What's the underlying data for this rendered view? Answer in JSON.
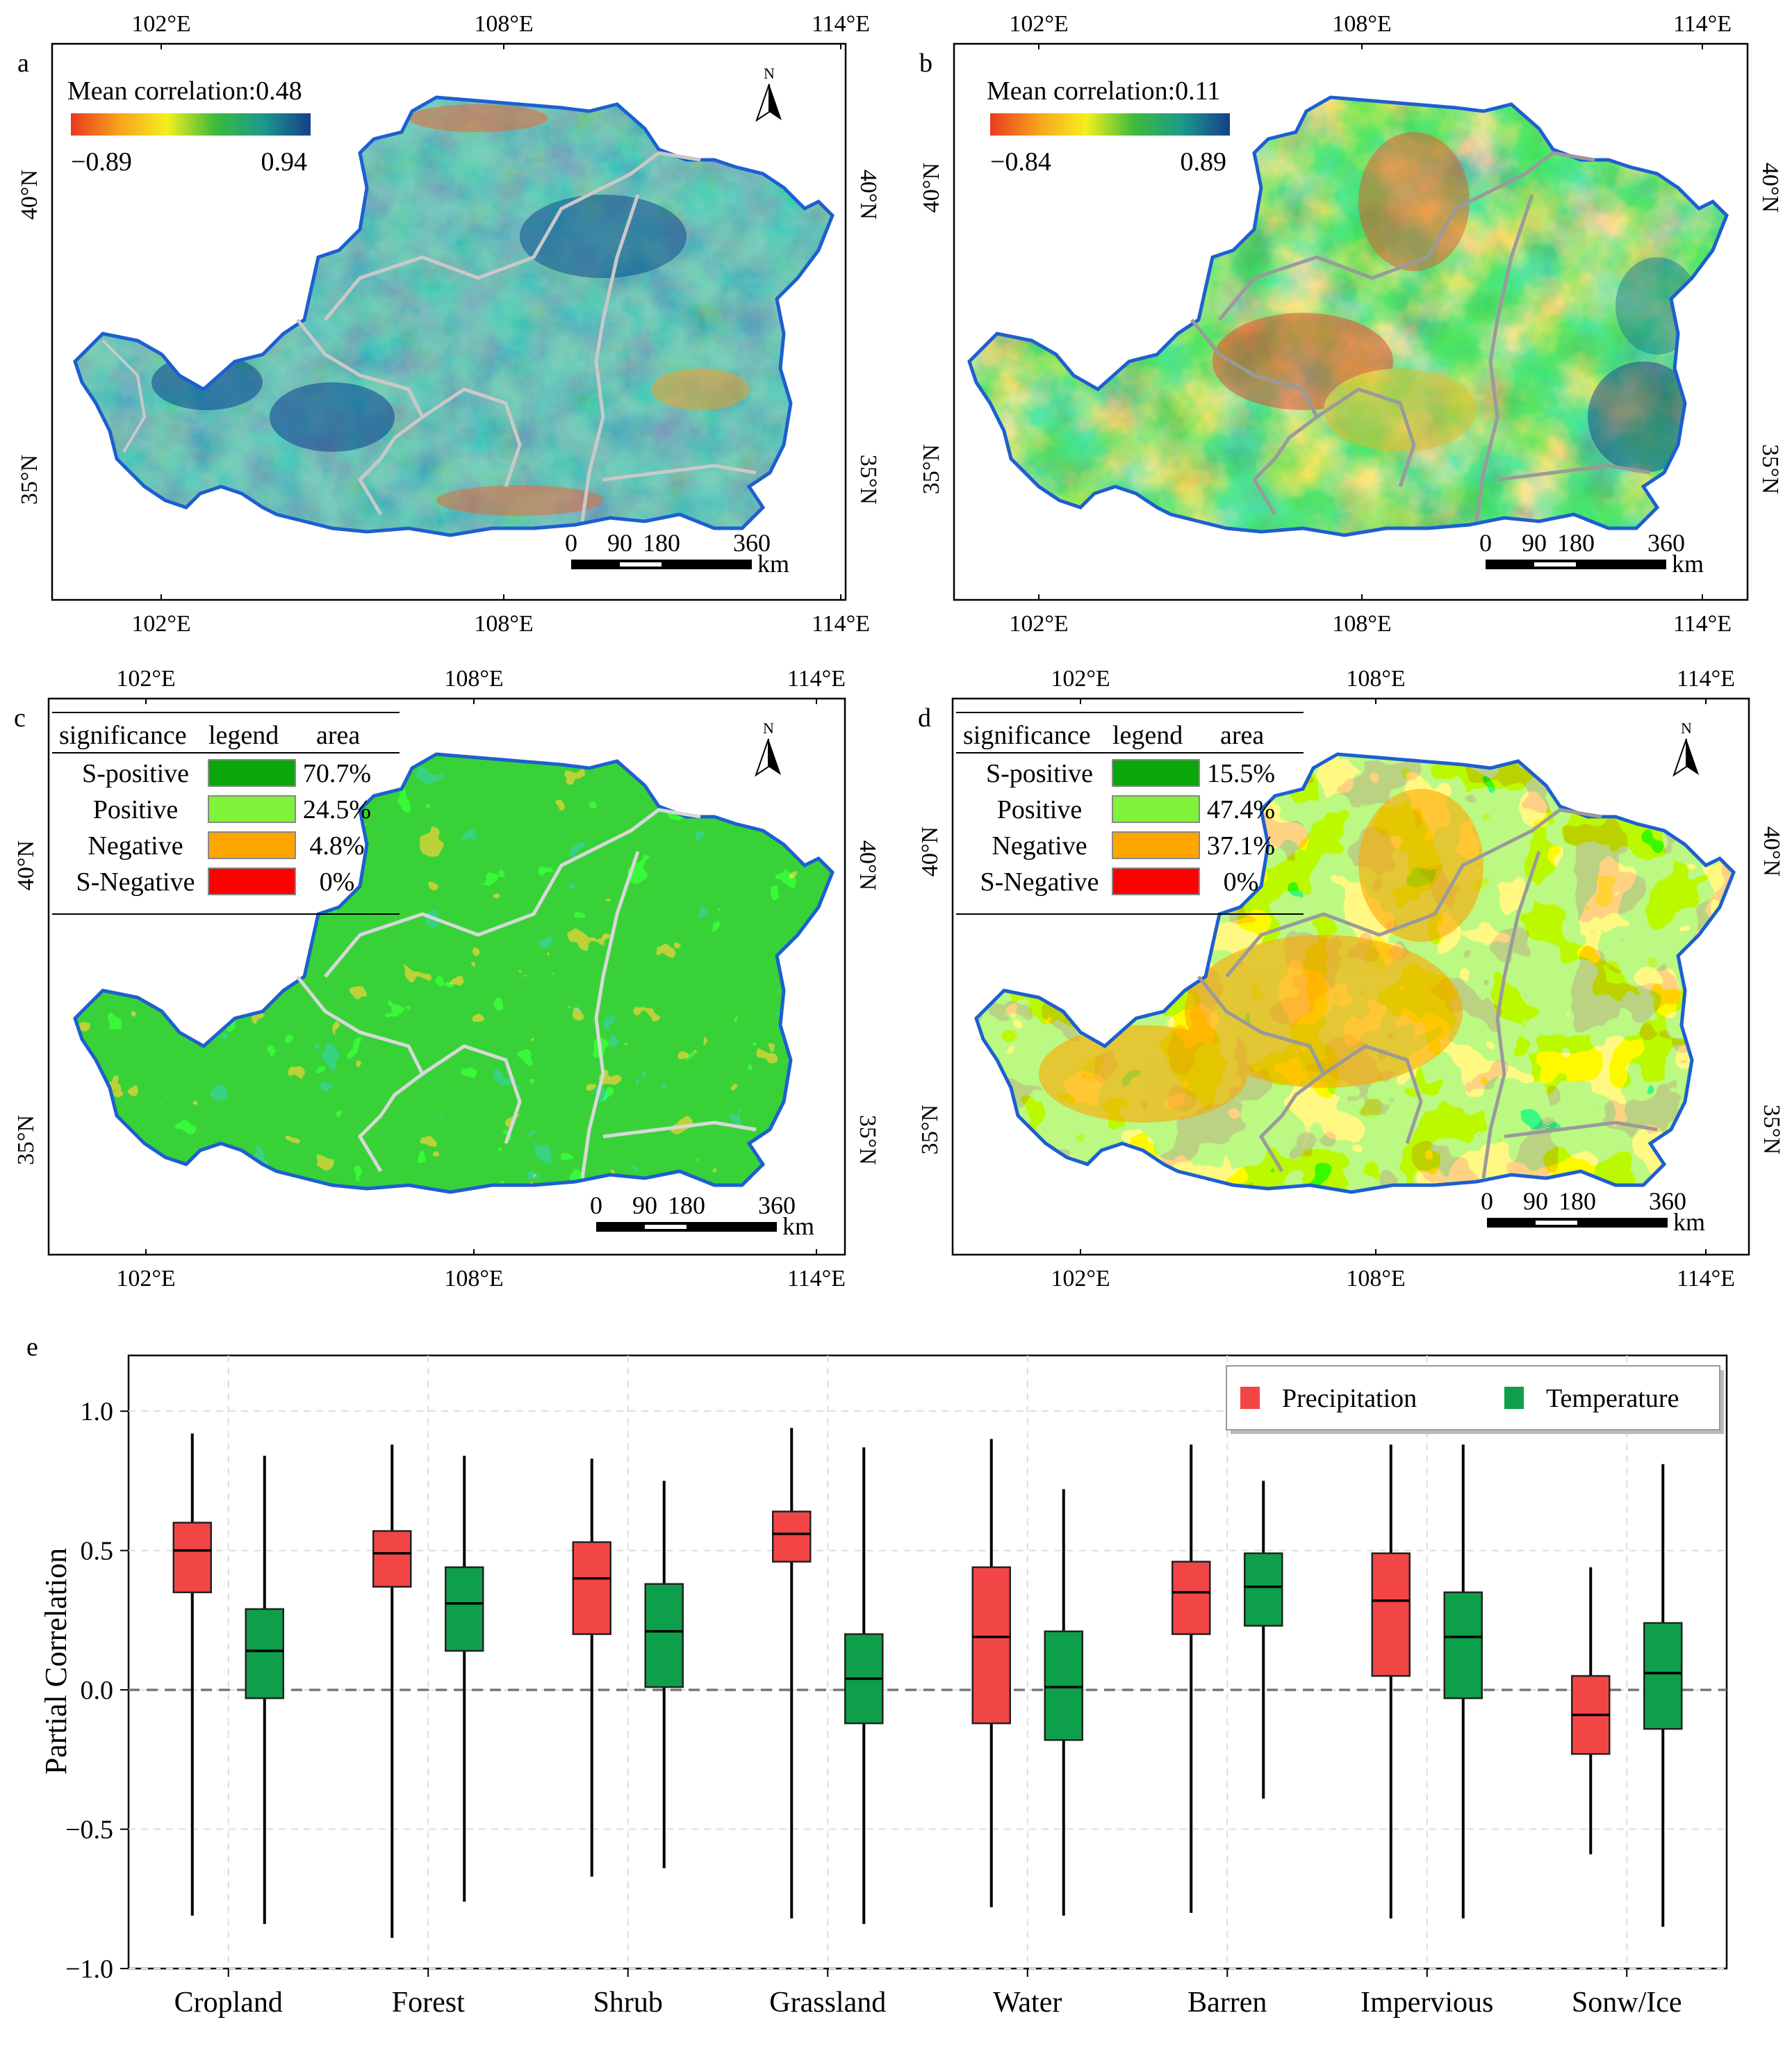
{
  "panels": {
    "a": {
      "letter": "a",
      "title": "Mean correlation:0.48",
      "min": "−0.89",
      "max": "0.94",
      "colors": [
        "#e83a1f",
        "#f7a21d",
        "#f5ef1f",
        "#3dbb3a",
        "#1b9a8c",
        "#163f8a"
      ]
    },
    "b": {
      "letter": "b",
      "title": "Mean correlation:0.11",
      "min": "−0.84",
      "max": "0.89",
      "colors": [
        "#e83a1f",
        "#f7a21d",
        "#f5ef1f",
        "#3dbb3a",
        "#1b9a8c",
        "#163f8a"
      ]
    },
    "c": {
      "letter": "c",
      "legend_header": [
        "significance",
        "legend",
        "area"
      ],
      "rows": [
        {
          "label": "S-positive",
          "area": "70.7%",
          "color": "#0aa70a"
        },
        {
          "label": "Positive",
          "area": "24.5%",
          "color": "#7ff23a"
        },
        {
          "label": "Negative",
          "area": "4.8%",
          "color": "#ffa500"
        },
        {
          "label": "S-Negative",
          "area": "0%",
          "color": "#ff0000"
        }
      ]
    },
    "d": {
      "letter": "d",
      "legend_header": [
        "significance",
        "legend",
        "area"
      ],
      "rows": [
        {
          "label": "S-positive",
          "area": "15.5%",
          "color": "#0aa70a"
        },
        {
          "label": "Positive",
          "area": "47.4%",
          "color": "#7ff23a"
        },
        {
          "label": "Negative",
          "area": "37.1%",
          "color": "#ffa500"
        },
        {
          "label": "S-Negative",
          "area": "0%",
          "color": "#ff0000"
        }
      ]
    }
  },
  "map_axes": {
    "lon_ticks": [
      "102°E",
      "108°E",
      "114°E"
    ],
    "lat_ticks": [
      "40°N",
      "35°N"
    ],
    "north": "N",
    "scale_labels": [
      "0",
      "90",
      "180",
      "360"
    ],
    "scale_unit": "km"
  },
  "chart_data": {
    "type": "box",
    "panel_letter": "e",
    "ylabel": "Partial Correlation",
    "ylim": [
      -1.0,
      1.2
    ],
    "yticks": [
      "1.0",
      "0.5",
      "0.0",
      "−0.5",
      "−1.0"
    ],
    "ytick_values": [
      1.0,
      0.5,
      0.0,
      -0.5,
      -1.0
    ],
    "categories": [
      "Cropland",
      "Forest",
      "Shrub",
      "Grassland",
      "Water",
      "Barren",
      "Impervious",
      "Sonw/Ice"
    ],
    "legend_position": "top-right",
    "series": [
      {
        "name": "Precipitation",
        "color": "#f24646",
        "boxes": [
          {
            "min": -0.81,
            "q1": 0.35,
            "median": 0.5,
            "q3": 0.6,
            "max": 0.92
          },
          {
            "min": -0.89,
            "q1": 0.37,
            "median": 0.49,
            "q3": 0.57,
            "max": 0.88
          },
          {
            "min": -0.67,
            "q1": 0.2,
            "median": 0.4,
            "q3": 0.53,
            "max": 0.83
          },
          {
            "min": -0.82,
            "q1": 0.46,
            "median": 0.56,
            "q3": 0.64,
            "max": 0.94
          },
          {
            "min": -0.78,
            "q1": -0.12,
            "median": 0.19,
            "q3": 0.44,
            "max": 0.9
          },
          {
            "min": -0.8,
            "q1": 0.2,
            "median": 0.35,
            "q3": 0.46,
            "max": 0.88
          },
          {
            "min": -0.82,
            "q1": 0.05,
            "median": 0.32,
            "q3": 0.49,
            "max": 0.88
          },
          {
            "min": -0.59,
            "q1": -0.23,
            "median": -0.09,
            "q3": 0.05,
            "max": 0.44
          }
        ]
      },
      {
        "name": "Temperature",
        "color": "#0e9f4a",
        "boxes": [
          {
            "min": -0.84,
            "q1": -0.03,
            "median": 0.14,
            "q3": 0.29,
            "max": 0.84
          },
          {
            "min": -0.76,
            "q1": 0.14,
            "median": 0.31,
            "q3": 0.44,
            "max": 0.84
          },
          {
            "min": -0.64,
            "q1": 0.01,
            "median": 0.21,
            "q3": 0.38,
            "max": 0.75
          },
          {
            "min": -0.84,
            "q1": -0.12,
            "median": 0.04,
            "q3": 0.2,
            "max": 0.87
          },
          {
            "min": -0.81,
            "q1": -0.18,
            "median": 0.01,
            "q3": 0.21,
            "max": 0.72
          },
          {
            "min": -0.39,
            "q1": 0.23,
            "median": 0.37,
            "q3": 0.49,
            "max": 0.75
          },
          {
            "min": -0.82,
            "q1": -0.03,
            "median": 0.19,
            "q3": 0.35,
            "max": 0.88
          },
          {
            "min": -0.85,
            "q1": -0.14,
            "median": 0.06,
            "q3": 0.24,
            "max": 0.81
          }
        ]
      }
    ]
  }
}
